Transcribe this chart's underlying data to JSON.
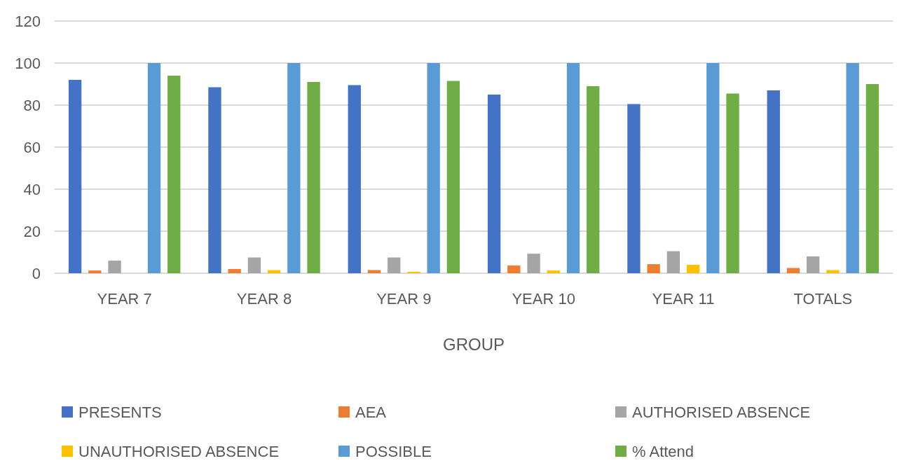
{
  "chart_data": {
    "type": "bar",
    "xlabel": "GROUP",
    "categories": [
      "YEAR 7",
      "YEAR 8",
      "YEAR 9",
      "YEAR 10",
      "YEAR 11",
      "TOTALS"
    ],
    "series": [
      {
        "name": "PRESENTS",
        "color": "#4472c4",
        "values": [
          92,
          88.5,
          89.5,
          85,
          80.5,
          87
        ]
      },
      {
        "name": "AEA",
        "color": "#ed7d31",
        "values": [
          1.3,
          2,
          1.5,
          3.7,
          4.3,
          2.5
        ]
      },
      {
        "name": "AUTHORISED ABSENCE",
        "color": "#a5a5a5",
        "values": [
          6,
          7.5,
          7.5,
          9.3,
          10.5,
          8
        ]
      },
      {
        "name": "UNAUTHORISED ABSENCE",
        "color": "#ffc000",
        "values": [
          0,
          1.5,
          0.7,
          1.3,
          4,
          1.5
        ]
      },
      {
        "name": "POSSIBLE",
        "color": "#5b9bd5",
        "values": [
          100,
          100,
          100,
          100,
          100,
          100
        ]
      },
      {
        "name": "% Attend",
        "color": "#70ad47",
        "values": [
          94,
          91,
          91.5,
          89,
          85.5,
          90
        ]
      }
    ],
    "ylim": [
      0,
      120
    ],
    "yticks": [
      0,
      20,
      40,
      60,
      80,
      100,
      120
    ],
    "grid": "y",
    "legend": "bottom"
  }
}
